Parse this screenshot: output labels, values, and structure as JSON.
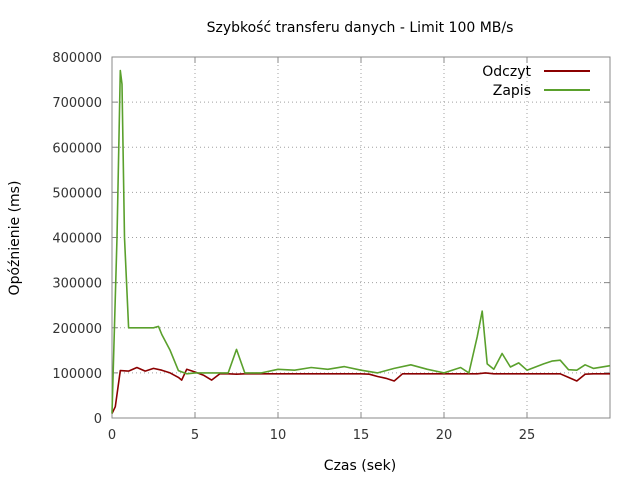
{
  "chart_data": {
    "type": "line",
    "title": "Szybkość transferu danych - Limit 100 MB/s",
    "xlabel": "Czas (sek)",
    "ylabel": "Opóźnienie (ms)",
    "xlim": [
      0,
      30
    ],
    "ylim": [
      0,
      800000
    ],
    "x_ticks": [
      "0",
      "5",
      "10",
      "15",
      "20",
      "25"
    ],
    "y_ticks": [
      "0",
      "100000",
      "200000",
      "300000",
      "400000",
      "500000",
      "600000",
      "700000",
      "800000"
    ],
    "x_tick_values": [
      0,
      5,
      10,
      15,
      20,
      25
    ],
    "y_tick_values": [
      0,
      100000,
      200000,
      300000,
      400000,
      500000,
      600000,
      700000,
      800000
    ],
    "grid": true,
    "legend_position": "top-right",
    "series": [
      {
        "name": "Odczyt",
        "color": "#8b0000",
        "x": [
          0,
          0.2,
          0.5,
          1,
          1.5,
          2,
          2.5,
          3,
          3.5,
          4,
          4.2,
          4.5,
          5,
          5.5,
          6,
          6.5,
          7,
          7.5,
          8,
          9,
          10,
          11,
          12,
          13,
          14,
          15,
          15.5,
          16,
          16.5,
          17,
          17.5,
          18,
          19,
          20,
          21,
          22,
          22.5,
          23,
          24,
          25,
          26,
          27,
          27.5,
          28,
          28.5,
          29,
          30
        ],
        "y": [
          10000,
          25000,
          105000,
          104000,
          112000,
          104000,
          110000,
          106000,
          100000,
          90000,
          84000,
          108000,
          102000,
          95000,
          84000,
          98000,
          98000,
          97000,
          98000,
          98000,
          98000,
          98000,
          98000,
          98000,
          98000,
          98000,
          97000,
          92000,
          88000,
          82000,
          98000,
          98000,
          98000,
          98000,
          98000,
          98000,
          100000,
          98000,
          98000,
          98000,
          98000,
          98000,
          90000,
          82000,
          97000,
          98000,
          98000
        ]
      },
      {
        "name": "Zapis",
        "color": "#5aa02c",
        "x": [
          0,
          0.3,
          0.5,
          0.6,
          0.75,
          1,
          1.5,
          2,
          2.5,
          2.8,
          3,
          3.5,
          4,
          4.5,
          5,
          6,
          7,
          7.5,
          8,
          9,
          10,
          11,
          12,
          13,
          14,
          15,
          16,
          17,
          18,
          19,
          20,
          21,
          21.5,
          22,
          22.3,
          22.6,
          23,
          23.5,
          24,
          24.5,
          25,
          26,
          26.5,
          27,
          27.5,
          28,
          28.5,
          29,
          30
        ],
        "y": [
          10000,
          400000,
          770000,
          740000,
          400000,
          200000,
          200000,
          200000,
          200000,
          203000,
          185000,
          150000,
          105000,
          98000,
          100000,
          100000,
          100000,
          152000,
          100000,
          100000,
          108000,
          106000,
          112000,
          108000,
          114000,
          106000,
          100000,
          110000,
          118000,
          108000,
          100000,
          112000,
          100000,
          180000,
          237000,
          120000,
          108000,
          143000,
          113000,
          122000,
          106000,
          120000,
          126000,
          128000,
          107000,
          106000,
          118000,
          110000,
          116000
        ]
      }
    ]
  }
}
